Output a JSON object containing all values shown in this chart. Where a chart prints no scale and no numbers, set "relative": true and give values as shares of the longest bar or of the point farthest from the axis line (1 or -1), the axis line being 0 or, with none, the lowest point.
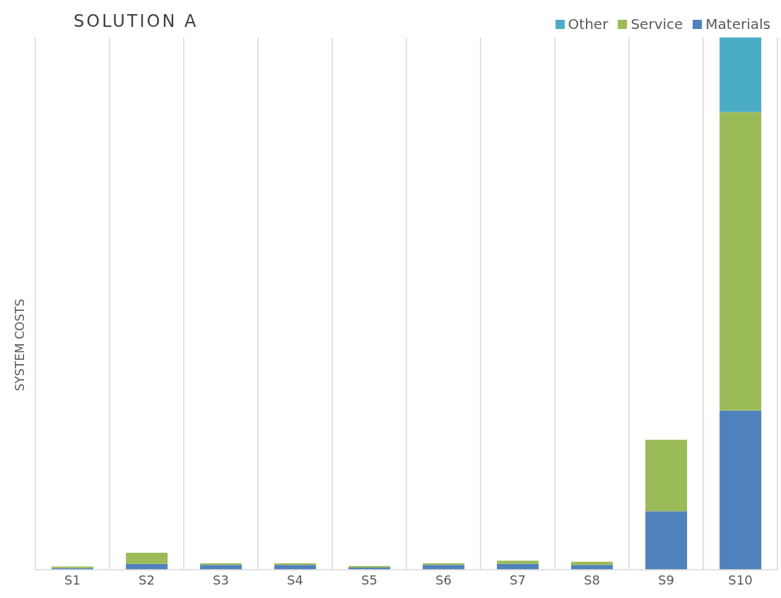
{
  "chart_data": {
    "type": "bar",
    "title": "SOLUTION A",
    "ylabel": "SYSTEM COSTS",
    "relative": true,
    "stacked": true,
    "grid": "x",
    "legend": "top right",
    "categories": [
      "S1",
      "S2",
      "S3",
      "S4",
      "S5",
      "S6",
      "S7",
      "S8",
      "S9",
      "S10"
    ],
    "series": [
      {
        "name": "Materials",
        "color": "#4f81bd",
        "values": [
          0.003,
          0.011,
          0.009,
          0.009,
          0.004,
          0.009,
          0.011,
          0.009,
          0.11,
          0.299
        ]
      },
      {
        "name": "Service",
        "color": "#9bbb59",
        "values": [
          0.003,
          0.021,
          0.003,
          0.003,
          0.003,
          0.003,
          0.006,
          0.006,
          0.134,
          0.561
        ]
      },
      {
        "name": "Other",
        "color": "#4bacc6",
        "values": [
          0,
          0,
          0,
          0,
          0,
          0,
          0,
          0,
          0,
          0.14
        ]
      }
    ]
  }
}
